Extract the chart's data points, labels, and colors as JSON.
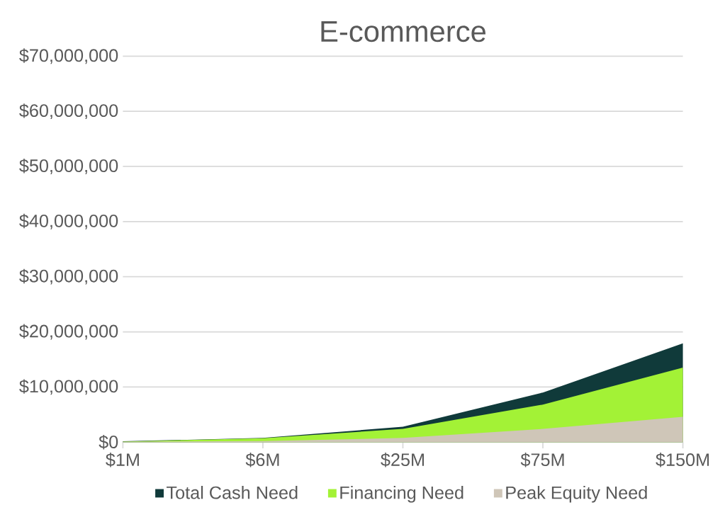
{
  "chart_data": {
    "type": "area",
    "title": "E-commerce",
    "categories": [
      "$1M",
      "$6M",
      "$25M",
      "$75M",
      "$150M"
    ],
    "series": [
      {
        "name": "Total Cash Need",
        "color": "#103a3a",
        "values": [
          150000,
          750000,
          2800000,
          9000000,
          17900000
        ]
      },
      {
        "name": "Financing Need",
        "color": "#a3f236",
        "values": [
          100000,
          700000,
          2400000,
          6800000,
          13500000
        ]
      },
      {
        "name": "Peak Equity Need",
        "color": "#cfc6b8",
        "values": [
          50000,
          200000,
          750000,
          2400000,
          4600000
        ]
      }
    ],
    "ylim": [
      0,
      70000000
    ],
    "yticks": [
      {
        "value": 0,
        "label": "$0"
      },
      {
        "value": 10000000,
        "label": "$10,000,000"
      },
      {
        "value": 20000000,
        "label": "$20,000,000"
      },
      {
        "value": 30000000,
        "label": "$30,000,000"
      },
      {
        "value": 40000000,
        "label": "$40,000,000"
      },
      {
        "value": 50000000,
        "label": "$50,000,000"
      },
      {
        "value": 60000000,
        "label": "$60,000,000"
      },
      {
        "value": 70000000,
        "label": "$70,000,000"
      }
    ],
    "grid": "y",
    "legend": "bottom"
  }
}
